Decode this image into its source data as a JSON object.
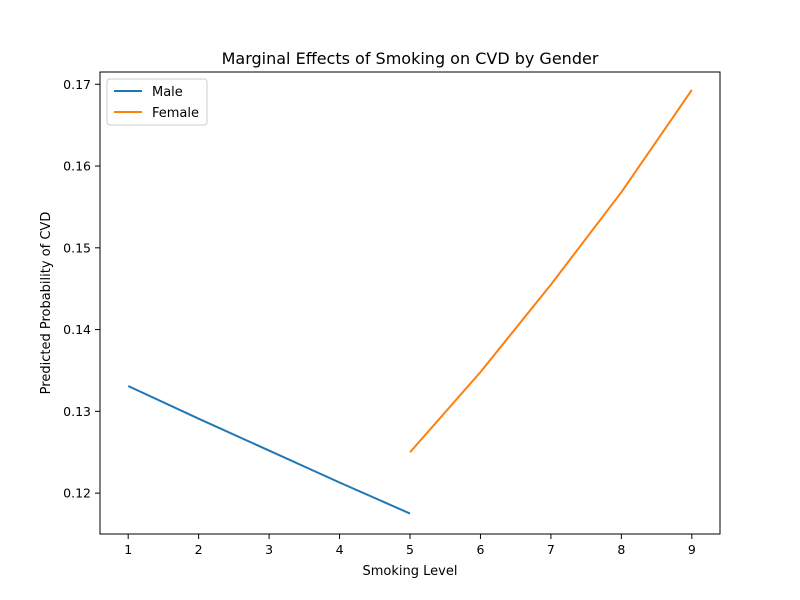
{
  "chart_data": {
    "type": "line",
    "title": "Marginal Effects of Smoking on CVD by Gender",
    "xlabel": "Smoking Level",
    "ylabel": "Predicted Probability of CVD",
    "xlim": [
      0.6,
      9.4
    ],
    "ylim": [
      0.115,
      0.1715
    ],
    "xticks": [
      1,
      2,
      3,
      4,
      5,
      6,
      7,
      8,
      9
    ],
    "yticks": [
      0.12,
      0.13,
      0.14,
      0.15,
      0.16,
      0.17
    ],
    "ytick_labels": [
      "0.12",
      "0.13",
      "0.14",
      "0.15",
      "0.16",
      "0.17"
    ],
    "grid": false,
    "legend_position": "top-left",
    "series": [
      {
        "name": "Male",
        "color": "#1f77b4",
        "x": [
          1,
          2,
          3,
          4,
          5
        ],
        "y": [
          0.1331,
          0.1291,
          0.1252,
          0.1213,
          0.1175
        ]
      },
      {
        "name": "Female",
        "color": "#ff7f0e",
        "x": [
          5,
          6,
          7,
          8,
          9
        ],
        "y": [
          0.125,
          0.1348,
          0.1455,
          0.1568,
          0.1693
        ]
      }
    ]
  }
}
